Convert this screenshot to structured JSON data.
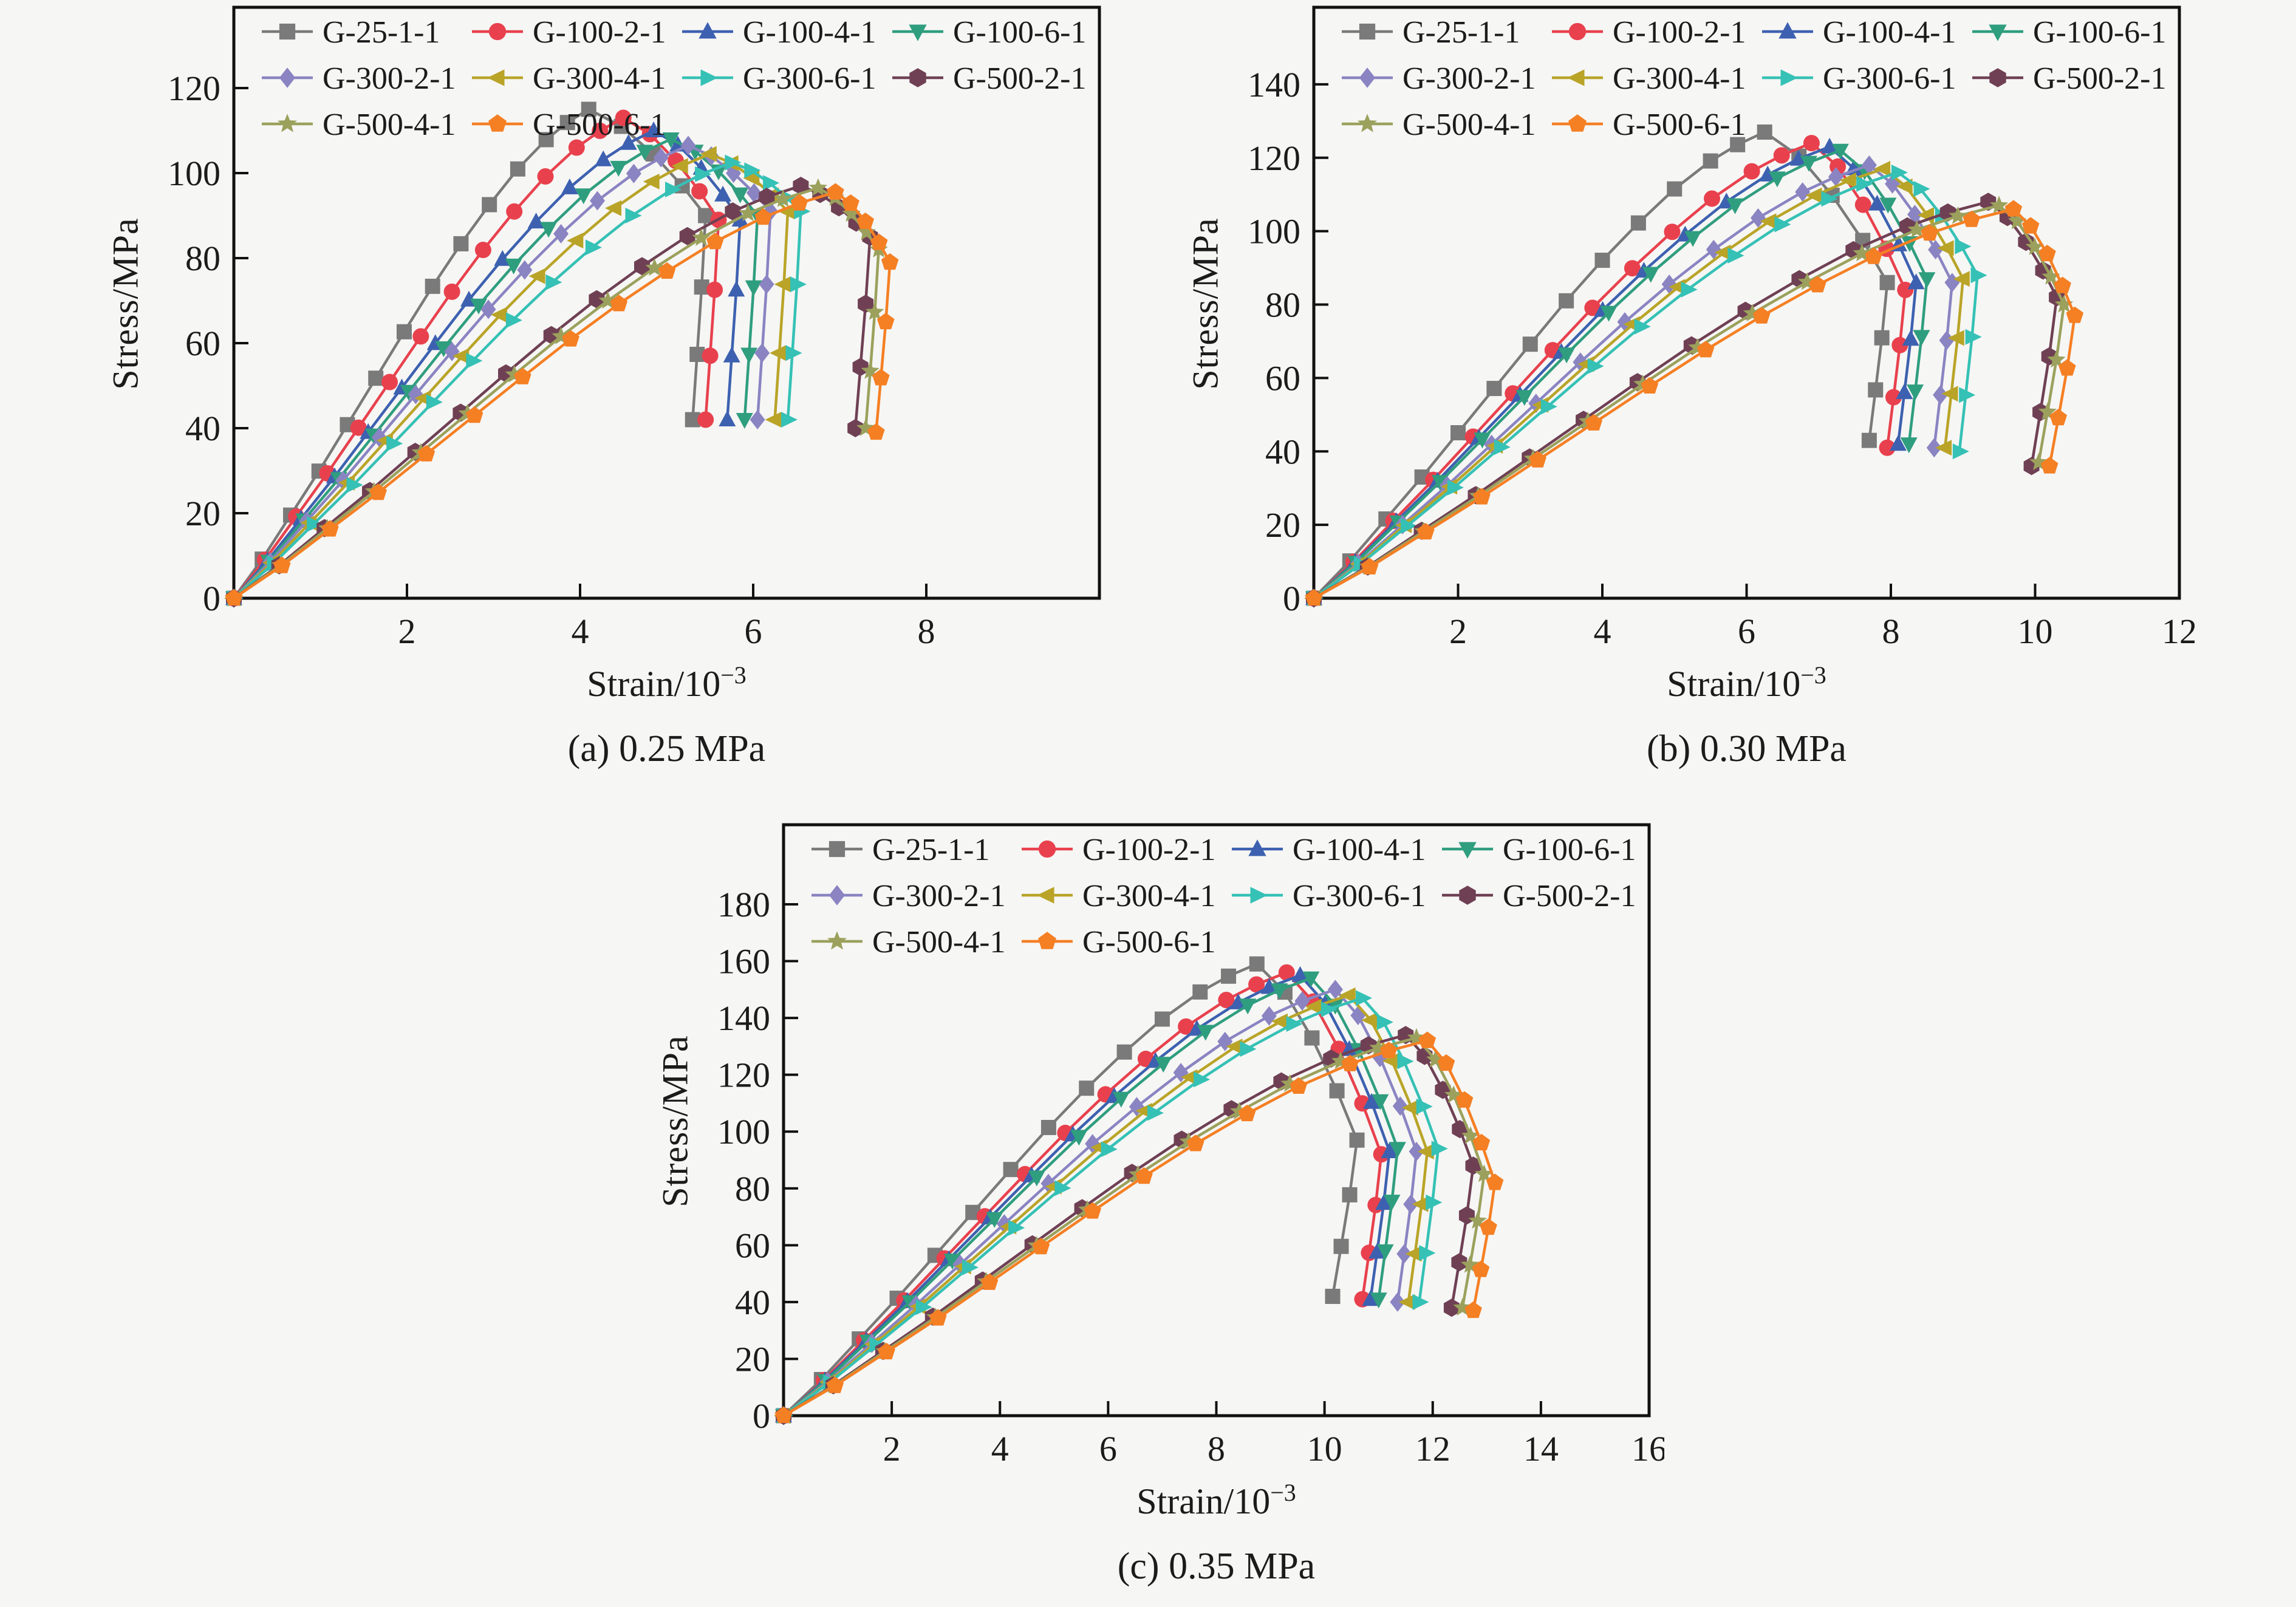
{
  "figure": {
    "background": "#f6f6f5",
    "axis_color": "#111111",
    "text_color": "#1b1b1b"
  },
  "chart_data": [
    {
      "type": "line",
      "caption": "(a) 0.25 MPa",
      "xlabel_base": "Strain/10",
      "xlabel_exp": "−3",
      "ylabel": "Stress/MPa",
      "x_max": 10,
      "y_max": 139,
      "x_ticks": [
        2,
        4,
        6,
        8
      ],
      "y_ticks": [
        0,
        20,
        40,
        60,
        80,
        100,
        120
      ],
      "grid": false,
      "legend_position": "top-left",
      "series": [
        {
          "name": "G-25-1-1",
          "marker": "square",
          "color": "#7a7a7a",
          "peak": [
            4.1,
            115
          ],
          "turn": [
            5.45,
            90
          ],
          "end": [
            5.3,
            42
          ]
        },
        {
          "name": "G-100-2-1",
          "marker": "circle",
          "color": "#e8414d",
          "peak": [
            4.5,
            113
          ],
          "turn": [
            5.6,
            89
          ],
          "end": [
            5.45,
            42
          ]
        },
        {
          "name": "G-100-4-1",
          "marker": "triangle-up",
          "color": "#3d61b0",
          "peak": [
            4.85,
            110
          ],
          "turn": [
            5.85,
            89
          ],
          "end": [
            5.7,
            42
          ]
        },
        {
          "name": "G-100-6-1",
          "marker": "triangle-down",
          "color": "#2f9e7e",
          "peak": [
            5.05,
            108
          ],
          "turn": [
            6.05,
            90
          ],
          "end": [
            5.9,
            42
          ]
        },
        {
          "name": "G-300-2-1",
          "marker": "diamond",
          "color": "#8a84c2",
          "peak": [
            5.25,
            106.5
          ],
          "turn": [
            6.2,
            91
          ],
          "end": [
            6.05,
            42
          ]
        },
        {
          "name": "G-300-4-1",
          "marker": "triangle-left",
          "color": "#b9a428",
          "peak": [
            5.5,
            104.5
          ],
          "turn": [
            6.4,
            91
          ],
          "end": [
            6.25,
            42
          ]
        },
        {
          "name": "G-300-6-1",
          "marker": "triangle-right",
          "color": "#35c1b5",
          "peak": [
            5.75,
            102.5
          ],
          "turn": [
            6.55,
            91
          ],
          "end": [
            6.4,
            42
          ]
        },
        {
          "name": "G-500-2-1",
          "marker": "hexagon",
          "color": "#6f4054",
          "peak": [
            6.55,
            97
          ],
          "turn": [
            7.35,
            85
          ],
          "end": [
            7.18,
            40
          ]
        },
        {
          "name": "G-500-4-1",
          "marker": "star",
          "color": "#9ba15c",
          "peak": [
            6.75,
            96.5
          ],
          "turn": [
            7.45,
            82
          ],
          "end": [
            7.3,
            40
          ]
        },
        {
          "name": "G-500-6-1",
          "marker": "pentagon",
          "color": "#f57f23",
          "peak": [
            6.95,
            95.5
          ],
          "turn": [
            7.58,
            79
          ],
          "end": [
            7.42,
            39
          ]
        }
      ]
    },
    {
      "type": "line",
      "caption": "(b) 0.30 MPa",
      "xlabel_base": "Strain/10",
      "xlabel_exp": "−3",
      "ylabel": "Stress/MPa",
      "x_max": 12,
      "y_max": 161,
      "x_ticks": [
        2,
        4,
        6,
        8,
        10,
        12
      ],
      "y_ticks": [
        0,
        20,
        40,
        60,
        80,
        100,
        120,
        140
      ],
      "grid": false,
      "legend_position": "top-left",
      "series": [
        {
          "name": "G-25-1-1",
          "marker": "square",
          "color": "#7a7a7a",
          "peak": [
            6.25,
            127
          ],
          "turn": [
            7.95,
            86
          ],
          "end": [
            7.7,
            43
          ]
        },
        {
          "name": "G-100-2-1",
          "marker": "circle",
          "color": "#e8414d",
          "peak": [
            6.9,
            124
          ],
          "turn": [
            8.2,
            84
          ],
          "end": [
            7.95,
            41
          ]
        },
        {
          "name": "G-100-4-1",
          "marker": "triangle-up",
          "color": "#3d61b0",
          "peak": [
            7.15,
            123
          ],
          "turn": [
            8.35,
            86
          ],
          "end": [
            8.1,
            42
          ]
        },
        {
          "name": "G-100-6-1",
          "marker": "triangle-down",
          "color": "#2f9e7e",
          "peak": [
            7.3,
            122
          ],
          "turn": [
            8.5,
            87
          ],
          "end": [
            8.25,
            42
          ]
        },
        {
          "name": "G-300-2-1",
          "marker": "diamond",
          "color": "#8a84c2",
          "peak": [
            7.7,
            118
          ],
          "turn": [
            8.85,
            86
          ],
          "end": [
            8.6,
            41
          ]
        },
        {
          "name": "G-300-4-1",
          "marker": "triangle-left",
          "color": "#b9a428",
          "peak": [
            7.9,
            117
          ],
          "turn": [
            9.0,
            87
          ],
          "end": [
            8.75,
            41
          ]
        },
        {
          "name": "G-300-6-1",
          "marker": "triangle-right",
          "color": "#35c1b5",
          "peak": [
            8.1,
            116
          ],
          "turn": [
            9.2,
            88
          ],
          "end": [
            8.95,
            40
          ]
        },
        {
          "name": "G-500-2-1",
          "marker": "hexagon",
          "color": "#6f4054",
          "peak": [
            9.35,
            108
          ],
          "turn": [
            10.3,
            82
          ],
          "end": [
            9.95,
            36
          ]
        },
        {
          "name": "G-500-4-1",
          "marker": "star",
          "color": "#9ba15c",
          "peak": [
            9.5,
            107
          ],
          "turn": [
            10.4,
            80
          ],
          "end": [
            10.05,
            37
          ]
        },
        {
          "name": "G-500-6-1",
          "marker": "pentagon",
          "color": "#f57f23",
          "peak": [
            9.7,
            106
          ],
          "turn": [
            10.55,
            77
          ],
          "end": [
            10.2,
            36
          ]
        }
      ]
    },
    {
      "type": "line",
      "caption": "(c) 0.35 MPa",
      "xlabel_base": "Strain/10",
      "xlabel_exp": "−3",
      "ylabel": "Stress/MPa",
      "x_max": 16,
      "y_max": 208,
      "x_ticks": [
        2,
        4,
        6,
        8,
        10,
        12,
        14,
        16
      ],
      "y_ticks": [
        0,
        20,
        40,
        60,
        80,
        100,
        120,
        140,
        160,
        180
      ],
      "grid": false,
      "legend_position": "top-left",
      "series": [
        {
          "name": "G-25-1-1",
          "marker": "square",
          "color": "#7a7a7a",
          "peak": [
            8.75,
            159
          ],
          "turn": [
            10.6,
            97
          ],
          "end": [
            10.15,
            42
          ]
        },
        {
          "name": "G-100-2-1",
          "marker": "circle",
          "color": "#e8414d",
          "peak": [
            9.3,
            156
          ],
          "turn": [
            11.05,
            92
          ],
          "end": [
            10.7,
            41
          ]
        },
        {
          "name": "G-100-4-1",
          "marker": "triangle-up",
          "color": "#3d61b0",
          "peak": [
            9.55,
            155
          ],
          "turn": [
            11.2,
            93
          ],
          "end": [
            10.85,
            41
          ]
        },
        {
          "name": "G-100-6-1",
          "marker": "triangle-down",
          "color": "#2f9e7e",
          "peak": [
            9.75,
            154
          ],
          "turn": [
            11.35,
            94
          ],
          "end": [
            11.0,
            41
          ]
        },
        {
          "name": "G-300-2-1",
          "marker": "diamond",
          "color": "#8a84c2",
          "peak": [
            10.2,
            150
          ],
          "turn": [
            11.7,
            93
          ],
          "end": [
            11.35,
            40
          ]
        },
        {
          "name": "G-300-4-1",
          "marker": "triangle-left",
          "color": "#b9a428",
          "peak": [
            10.45,
            148
          ],
          "turn": [
            11.9,
            93
          ],
          "end": [
            11.55,
            40
          ]
        },
        {
          "name": "G-300-6-1",
          "marker": "triangle-right",
          "color": "#35c1b5",
          "peak": [
            10.7,
            147
          ],
          "turn": [
            12.1,
            94
          ],
          "end": [
            11.75,
            40
          ]
        },
        {
          "name": "G-500-2-1",
          "marker": "hexagon",
          "color": "#6f4054",
          "peak": [
            11.5,
            134
          ],
          "turn": [
            12.75,
            88
          ],
          "end": [
            12.35,
            38
          ]
        },
        {
          "name": "G-500-4-1",
          "marker": "star",
          "color": "#9ba15c",
          "peak": [
            11.7,
            133
          ],
          "turn": [
            12.95,
            85
          ],
          "end": [
            12.55,
            38
          ]
        },
        {
          "name": "G-500-6-1",
          "marker": "pentagon",
          "color": "#f57f23",
          "peak": [
            11.9,
            132
          ],
          "turn": [
            13.15,
            82
          ],
          "end": [
            12.75,
            37
          ]
        }
      ]
    }
  ]
}
